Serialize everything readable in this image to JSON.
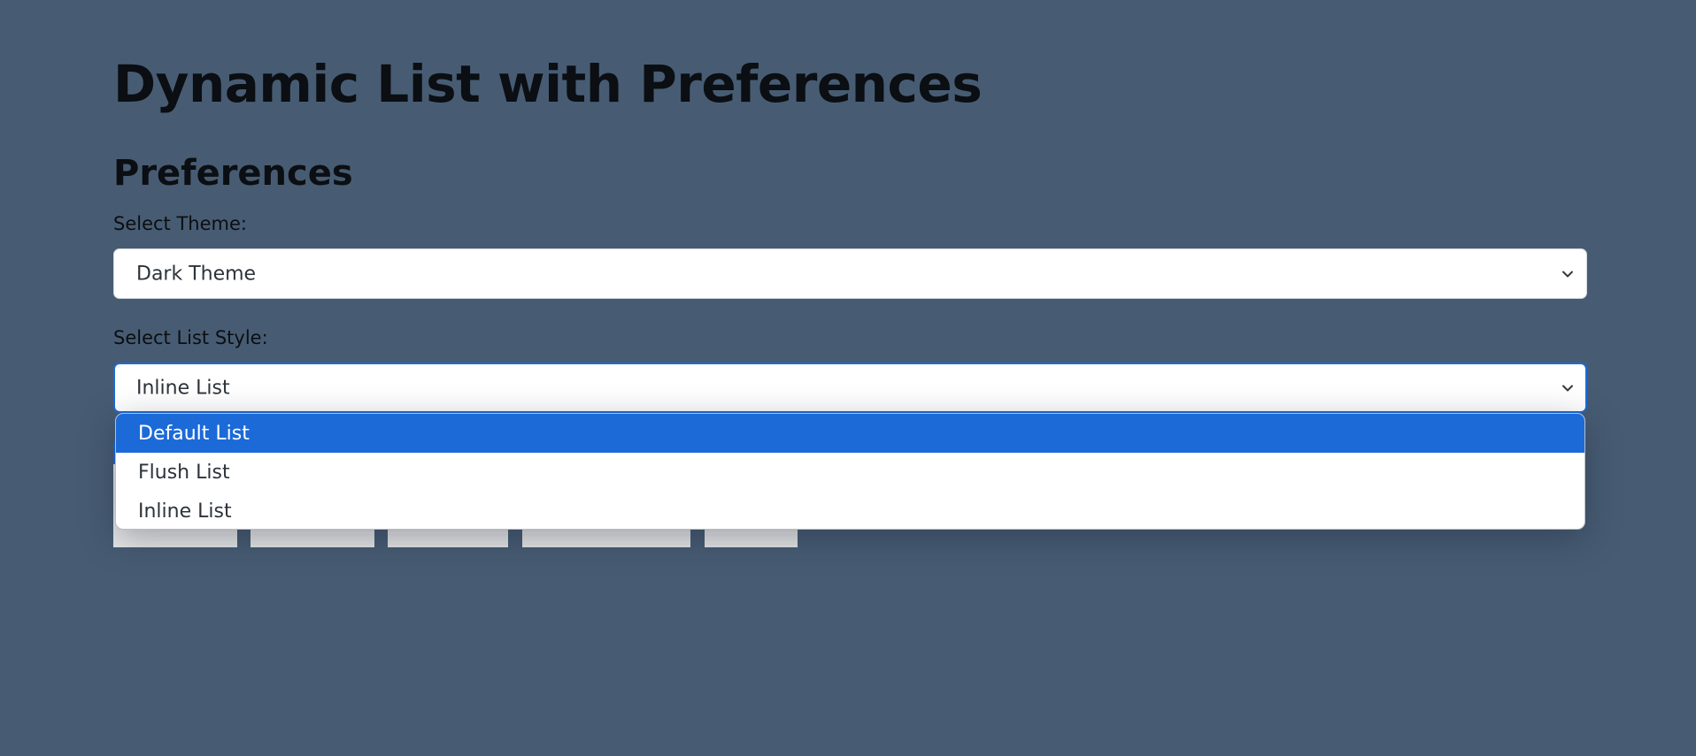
{
  "page": {
    "title": "Dynamic List with Preferences"
  },
  "preferences": {
    "heading": "Preferences",
    "theme_label": "Select Theme:",
    "theme_value": "Dark Theme",
    "list_style_label": "Select List Style:",
    "list_style_value": "Inline List",
    "list_style_options": [
      {
        "label": "Default List",
        "highlighted": true
      },
      {
        "label": "Flush List",
        "highlighted": false
      },
      {
        "label": "Inline List",
        "highlighted": false
      }
    ]
  },
  "colors": {
    "background": "#475c73",
    "accent": "#1b6ad8",
    "select_background": "#ffffff"
  },
  "icons": {
    "select_arrow": "chevron-down-icon"
  }
}
